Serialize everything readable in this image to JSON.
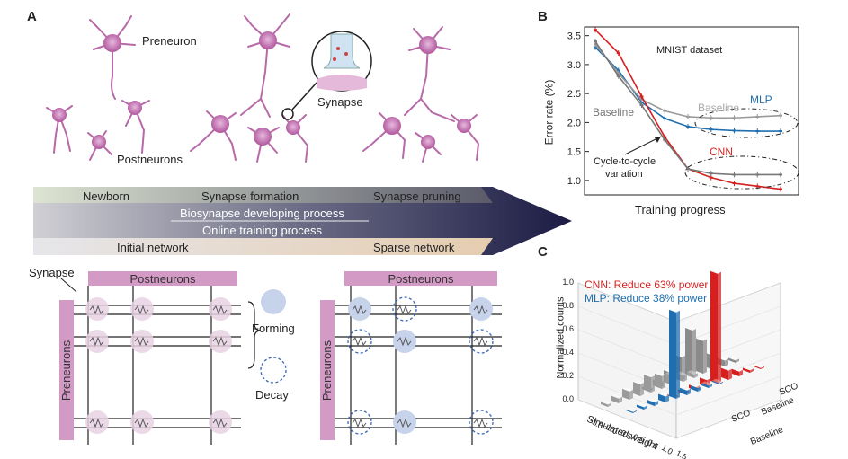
{
  "panels": {
    "a": "A",
    "b": "B",
    "c": "C"
  },
  "panel_a": {
    "preneuron": "Preneuron",
    "postneurons": "Postneurons",
    "synapse": "Synapse",
    "arrow_labels": {
      "newborn": "Newborn",
      "synapse_formation": "Synapse formation",
      "synapse_pruning": "Synapse pruning",
      "bio_process": "Biosynapse developing process",
      "online_process": "Online training process",
      "initial_network": "Initial network",
      "sparse_network": "Sparse network"
    },
    "crossbar": {
      "synapse_label": "Synapse",
      "postneurons": "Postneurons",
      "preneurons": "Preneurons",
      "forming": "Forming",
      "decay": "Decay"
    }
  },
  "chart_data": [
    {
      "type": "line",
      "title": "MNIST dataset",
      "xlabel": "Training progress",
      "ylabel": "Error rate (%)",
      "ylim": [
        0.75,
        3.65
      ],
      "yticks": [
        "1.0",
        "1.5",
        "2.0",
        "2.5",
        "3.0",
        "3.5"
      ],
      "x": [
        0,
        1,
        2,
        3,
        4,
        5,
        6,
        7,
        8
      ],
      "series": [
        {
          "name": "MLP",
          "color": "#1f6fb0",
          "values": [
            3.3,
            2.9,
            2.35,
            2.07,
            1.93,
            1.88,
            1.86,
            1.85,
            1.85
          ]
        },
        {
          "name": "Baseline",
          "color": "#9a9a9a",
          "values": [
            3.35,
            2.85,
            2.4,
            2.2,
            2.1,
            2.08,
            2.08,
            2.1,
            2.12
          ]
        },
        {
          "name": "CNN",
          "color": "#d62020",
          "values": [
            3.6,
            3.2,
            2.45,
            1.75,
            1.2,
            1.05,
            0.95,
            0.9,
            0.85
          ]
        },
        {
          "name": "Baseline",
          "color": "#777777",
          "values": [
            3.4,
            2.8,
            2.3,
            1.7,
            1.2,
            1.12,
            1.1,
            1.1,
            1.1
          ]
        }
      ],
      "annotations": {
        "mlp": "MLP",
        "cnn": "CNN",
        "baseline_upper": "Baseline",
        "baseline_left": "Baseline",
        "cycle_line1": "Cycle-to-cycle",
        "cycle_line2": "variation"
      }
    },
    {
      "type": "bar",
      "xlabel": "Simulated weight",
      "ylabel": "Normalized counts",
      "zticks": [
        "0.0",
        "0.2",
        "0.4",
        "0.6",
        "0.8",
        "1.0"
      ],
      "xticks": [
        "-1.5",
        "-1.0",
        "-0.5",
        "0.0",
        "0.5",
        "1.0",
        "1.5"
      ],
      "depth_labels": [
        "Baseline",
        "SCO",
        "Baseline",
        "SCO"
      ],
      "legend": [
        {
          "text": "CNN: Reduce 63% power",
          "color": "#d62020"
        },
        {
          "text": "MLP: Reduce 38% power",
          "color": "#1f6fb0"
        }
      ],
      "series": [
        {
          "name": "MLP Baseline",
          "color": "#9a9a9a",
          "values": [
            0.02,
            0.04,
            0.07,
            0.1,
            0.13,
            0.11,
            0.08,
            0.05,
            0.03
          ]
        },
        {
          "name": "MLP SCO",
          "color": "#1f6fb0",
          "values": [
            0.01,
            0.02,
            0.03,
            0.05,
            0.74,
            0.04,
            0.03,
            0.02,
            0.01
          ]
        },
        {
          "name": "CNN Baseline",
          "color": "#8a8a8a",
          "values": [
            0.02,
            0.05,
            0.1,
            0.2,
            0.4,
            0.28,
            0.12,
            0.05,
            0.02
          ]
        },
        {
          "name": "CNN SCO",
          "color": "#d62020",
          "values": [
            0.01,
            0.02,
            0.03,
            0.06,
            0.94,
            0.08,
            0.04,
            0.02,
            0.01
          ]
        }
      ]
    }
  ]
}
